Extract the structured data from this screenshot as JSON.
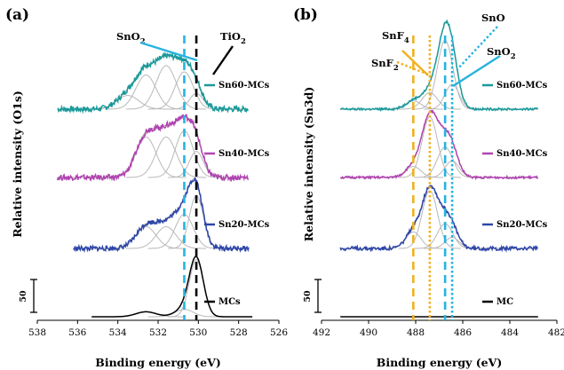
{
  "chart_data": [
    {
      "type": "line",
      "panel_label": "(a)",
      "xlabel": "Binding energy (eV)",
      "ylabel": "Relative intensity (O1s)",
      "xlim": [
        538,
        526
      ],
      "xticks": [
        "538",
        "536",
        "534",
        "532",
        "530",
        "528",
        "526"
      ],
      "scale_bar_label": "50",
      "annotations": [
        {
          "text": "SnO",
          "sub": "2",
          "color": "#26b3e0",
          "style": "solid"
        },
        {
          "text": "TiO",
          "sub": "2",
          "color": "#000000",
          "style": "solid"
        }
      ],
      "reference_lines": [
        {
          "x": 530.7,
          "color": "#26b3e0",
          "style": "dashed"
        },
        {
          "x": 530.1,
          "color": "#000000",
          "style": "dashed"
        }
      ],
      "fit_components": [
        {
          "center": 533.5,
          "width": 0.55
        },
        {
          "center": 532.6,
          "width": 0.5
        },
        {
          "center": 531.6,
          "width": 0.5
        },
        {
          "center": 530.7,
          "width": 0.45
        },
        {
          "center": 530.1,
          "width": 0.35
        }
      ],
      "series": [
        {
          "name": "Sn60-MCs",
          "color": "#1a9a9a",
          "range": [
            537.0,
            527.5
          ],
          "noise": 0.045,
          "amplitudes": [
            0.22,
            0.55,
            0.7,
            0.6,
            0.25
          ]
        },
        {
          "name": "Sn40-MCs",
          "color": "#b044b0",
          "range": [
            537.0,
            527.5
          ],
          "noise": 0.045,
          "amplitudes": [
            0.0,
            0.65,
            0.65,
            0.75,
            0.42
          ]
        },
        {
          "name": "Sn20-MCs",
          "color": "#2e46a8",
          "range": [
            536.2,
            527.5
          ],
          "noise": 0.04,
          "amplitudes": [
            0.0,
            0.35,
            0.35,
            0.55,
            0.85
          ]
        },
        {
          "name": "MCs",
          "color": "#000000",
          "range": [
            535.3,
            527.3
          ],
          "noise": 0.0,
          "amplitudes": [
            0.0,
            0.08,
            0.0,
            0.12,
            0.92
          ]
        }
      ]
    },
    {
      "type": "line",
      "panel_label": "(b)",
      "xlabel": "Binding energy (eV)",
      "ylabel": "Relative intensity (Sn3d)",
      "xlim": [
        492,
        482
      ],
      "xticks": [
        "492",
        "490",
        "488",
        "486",
        "484",
        "482"
      ],
      "scale_bar_label": "50",
      "annotations": [
        {
          "text": "SnF",
          "sub": "4",
          "color": "#f0b020",
          "style": "solid"
        },
        {
          "text": "SnF",
          "sub": "2",
          "color": "#f0b020",
          "style": "dotted"
        },
        {
          "text": "SnO",
          "sub": "",
          "color": "#26b3e0",
          "style": "dotted"
        },
        {
          "text": "SnO",
          "sub": "2",
          "color": "#26b3e0",
          "style": "solid"
        }
      ],
      "reference_lines": [
        {
          "x": 488.1,
          "color": "#f0b020",
          "style": "dashed"
        },
        {
          "x": 487.4,
          "color": "#f0b020",
          "style": "dotted"
        },
        {
          "x": 486.75,
          "color": "#26b3e0",
          "style": "dashed"
        },
        {
          "x": 486.45,
          "color": "#26b3e0",
          "style": "dotted"
        }
      ],
      "fit_components": [
        {
          "center": 488.1,
          "width": 0.32
        },
        {
          "center": 487.4,
          "width": 0.33
        },
        {
          "center": 486.75,
          "width": 0.33
        },
        {
          "center": 486.45,
          "width": 0.3
        }
      ],
      "series": [
        {
          "name": "Sn60-MCs",
          "color": "#1a9a9a",
          "range": [
            491.2,
            482.8
          ],
          "noise": 0.02,
          "amplitudes": [
            0.15,
            0.3,
            1.25,
            0.45
          ]
        },
        {
          "name": "Sn40-MCs",
          "color": "#b044b0",
          "range": [
            491.2,
            482.8
          ],
          "noise": 0.02,
          "amplitudes": [
            0.2,
            1.1,
            0.55,
            0.3
          ]
        },
        {
          "name": "Sn20-MCs",
          "color": "#2e46a8",
          "range": [
            491.2,
            482.8
          ],
          "noise": 0.035,
          "amplitudes": [
            0.3,
            1.05,
            0.45,
            0.2
          ]
        },
        {
          "name": "MC",
          "color": "#000000",
          "range": [
            491.2,
            482.8
          ],
          "noise": 0.0,
          "amplitudes": [
            0.0,
            0.0,
            0.0,
            0.0
          ]
        }
      ]
    }
  ]
}
